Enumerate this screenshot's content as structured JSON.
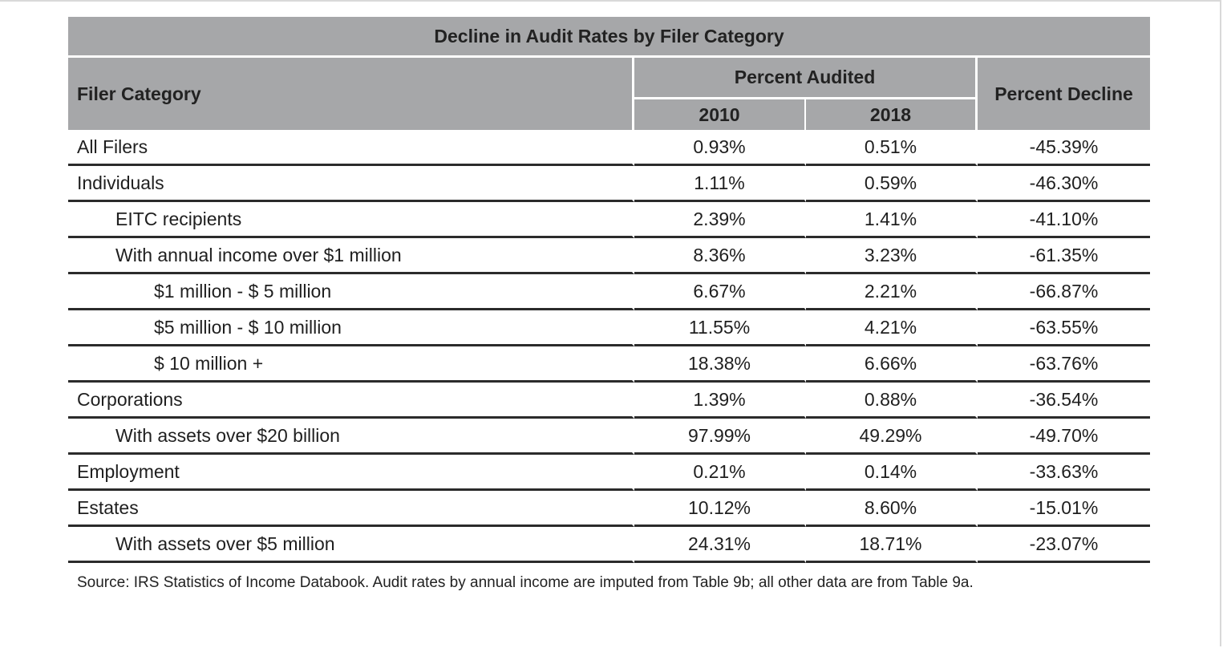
{
  "chart_data": {
    "type": "table",
    "title": "Decline in Audit Rates by Filer Category",
    "columns": {
      "category": "Filer Category",
      "group": "Percent Audited",
      "years": [
        "2010",
        "2018"
      ],
      "decline": "Percent Decline"
    },
    "rows": [
      {
        "label": "All Filers",
        "level": 0,
        "v2010": "0.93%",
        "v2018": "0.51%",
        "decline": "-45.39%"
      },
      {
        "label": "Individuals",
        "level": 0,
        "v2010": "1.11%",
        "v2018": "0.59%",
        "decline": "-46.30%"
      },
      {
        "label": "EITC recipients",
        "level": 1,
        "v2010": "2.39%",
        "v2018": "1.41%",
        "decline": "-41.10%"
      },
      {
        "label": "With annual income over $1 million",
        "level": 1,
        "v2010": "8.36%",
        "v2018": "3.23%",
        "decline": "-61.35%"
      },
      {
        "label": "$1 million - $ 5 million",
        "level": 2,
        "v2010": "6.67%",
        "v2018": "2.21%",
        "decline": "-66.87%"
      },
      {
        "label": "$5 million - $ 10 million",
        "level": 2,
        "v2010": "11.55%",
        "v2018": "4.21%",
        "decline": "-63.55%"
      },
      {
        "label": "$ 10 million +",
        "level": 2,
        "v2010": "18.38%",
        "v2018": "6.66%",
        "decline": "-63.76%"
      },
      {
        "label": "Corporations",
        "level": 0,
        "v2010": "1.39%",
        "v2018": "0.88%",
        "decline": "-36.54%"
      },
      {
        "label": "With assets over $20 billion",
        "level": 1,
        "v2010": "97.99%",
        "v2018": "49.29%",
        "decline": "-49.70%"
      },
      {
        "label": "Employment",
        "level": 0,
        "v2010": "0.21%",
        "v2018": "0.14%",
        "decline": "-33.63%"
      },
      {
        "label": "Estates",
        "level": 0,
        "v2010": "10.12%",
        "v2018": "8.60%",
        "decline": "-15.01%"
      },
      {
        "label": "With assets over $5 million",
        "level": 1,
        "v2010": "24.31%",
        "v2018": "18.71%",
        "decline": "-23.07%"
      }
    ],
    "source": "Source: IRS Statistics of Income Databook. Audit rates by annual income are imputed from Table 9b; all other data are from Table 9a."
  },
  "colors": {
    "header_bg": "#a6a7a9",
    "rule": "#2b2b2b",
    "text": "#1f1f1f"
  }
}
